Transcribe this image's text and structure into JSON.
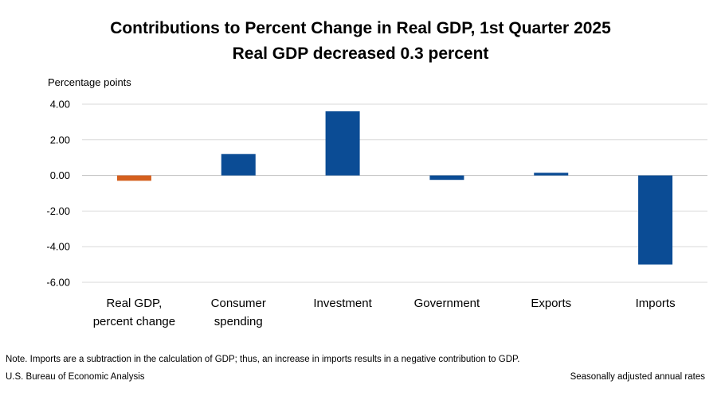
{
  "chart_data": {
    "type": "bar",
    "title": "Contributions to Percent Change in Real GDP, 1st Quarter 2025",
    "subtitle": "Real GDP decreased 0.3 percent",
    "ylabel": "Percentage points",
    "xlabel": "",
    "ylim": [
      -6,
      4
    ],
    "yticks": [
      "4.00",
      "2.00",
      "0.00",
      "-2.00",
      "-4.00",
      "-6.00"
    ],
    "ytick_values": [
      4,
      2,
      0,
      -2,
      -4,
      -6
    ],
    "grid": true,
    "legend": "none",
    "categories": [
      [
        "Real GDP,",
        "percent change"
      ],
      [
        "Consumer",
        "spending"
      ],
      [
        "Investment"
      ],
      [
        "Government"
      ],
      [
        "Exports"
      ],
      [
        "Imports"
      ]
    ],
    "values": [
      -0.3,
      1.2,
      3.6,
      -0.25,
      0.15,
      -5.0
    ],
    "bar_colors": [
      "#d45f1e",
      "#0b4c95",
      "#0b4c95",
      "#0b4c95",
      "#0b4c95",
      "#0b4c95"
    ]
  },
  "footer": {
    "note": "Note. Imports are a subtraction in the calculation of GDP; thus, an increase in imports results in a negative contribution to GDP.",
    "source": "U.S. Bureau of Economic Analysis",
    "rates": "Seasonally adjusted annual rates"
  },
  "colors": {
    "grid": "#d9d9d9",
    "axis": "#bfbfbf"
  }
}
